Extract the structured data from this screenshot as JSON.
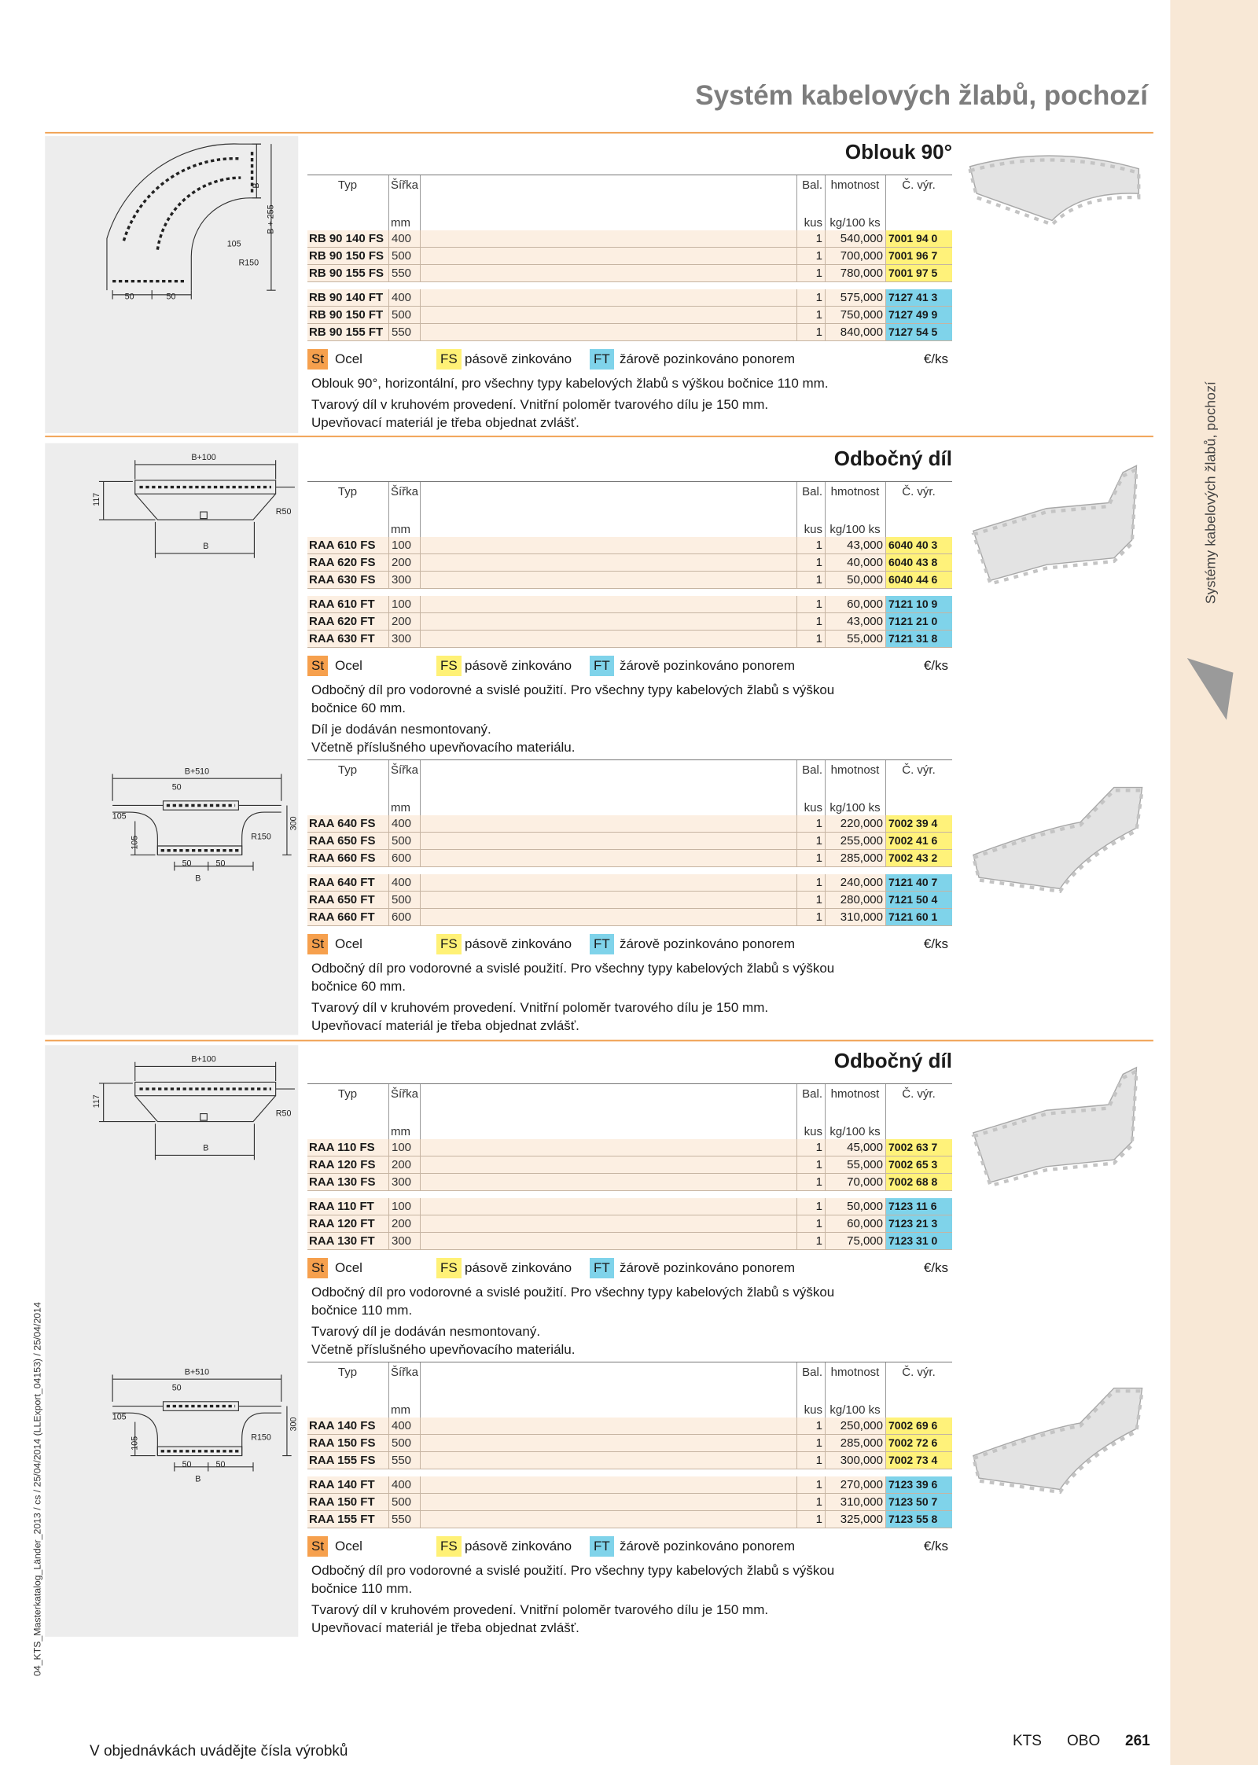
{
  "header": {
    "title": "Systém kabelových žlabů, pochozí"
  },
  "side_label": "Systémy kabelových žlabů, pochozí",
  "print_info": "04_KTS_Masterkatalog_Länder_2013 / cs / 25/04/2014 (LLExport_04153) / 25/04/2014",
  "footer": {
    "note": "V objednávkách uvádějte čísla výrobků",
    "brand1": "KTS",
    "brand2": "OBO",
    "page": "261"
  },
  "table_header": {
    "columns": [
      "Typ",
      "Šířka",
      "Bal.",
      "hmotnost",
      "Č. výr."
    ],
    "units": [
      "mm",
      "kus",
      "kg/100 ks"
    ]
  },
  "legend": {
    "st": "St",
    "st_label": "Ocel",
    "fs": "FS",
    "fs_label": "pásově zinkováno",
    "ft": "FT",
    "ft_label": "žárově pozinkováno ponorem",
    "unit": "€/ks"
  },
  "sections": [
    {
      "title": "Oblouk 90°",
      "drawing_labels": [
        "B",
        "B + 255",
        "105",
        "R150",
        "50",
        "50"
      ],
      "groups": [
        [
          [
            "RB 90 140 FS",
            "400",
            "1",
            "540,000",
            "7001 94 0"
          ],
          [
            "RB 90 150 FS",
            "500",
            "1",
            "700,000",
            "7001 96 7"
          ],
          [
            "RB 90 155 FS",
            "550",
            "1",
            "780,000",
            "7001 97 5"
          ]
        ],
        [
          [
            "RB 90 140 FT",
            "400",
            "1",
            "575,000",
            "7127 41 3"
          ],
          [
            "RB 90 150 FT",
            "500",
            "1",
            "750,000",
            "7127 49 9"
          ],
          [
            "RB 90 155 FT",
            "550",
            "1",
            "840,000",
            "7127 54 5"
          ]
        ]
      ],
      "description": [
        [
          "Oblouk 90°, horizontální, pro všechny typy kabelových žlabů s výškou bočnice 110 mm."
        ],
        [
          "Tvarový díl v kruhovém provedení. Vnitřní poloměr tvarového dílu je 150 mm.",
          "Upevňovací materiál je třeba objednat zvlášť."
        ]
      ]
    },
    {
      "title": "Odbočný díl",
      "drawing_labels": [
        "B+100",
        "117",
        "R50",
        "B"
      ],
      "groups": [
        [
          [
            "RAA 610 FS",
            "100",
            "1",
            "43,000",
            "6040 40 3"
          ],
          [
            "RAA 620 FS",
            "200",
            "1",
            "40,000",
            "6040 43 8"
          ],
          [
            "RAA 630 FS",
            "300",
            "1",
            "50,000",
            "6040 44 6"
          ]
        ],
        [
          [
            "RAA 610 FT",
            "100",
            "1",
            "60,000",
            "7121 10 9"
          ],
          [
            "RAA 620 FT",
            "200",
            "1",
            "43,000",
            "7121 21 0"
          ],
          [
            "RAA 630 FT",
            "300",
            "1",
            "55,000",
            "7121 31 8"
          ]
        ]
      ],
      "description": [
        [
          "Odbočný díl pro vodorovné a svislé použití. Pro všechny typy kabelových žlabů s výškou",
          "bočnice 60 mm."
        ],
        [
          "Díl je dodáván nesmontovaný.",
          "Včetně příslušného upevňovacího materiálu."
        ]
      ]
    },
    {
      "drawing_labels": [
        "B+510",
        "50",
        "105",
        "105",
        "R150",
        "300",
        "50",
        "50",
        "B"
      ],
      "groups": [
        [
          [
            "RAA 640 FS",
            "400",
            "1",
            "220,000",
            "7002 39 4"
          ],
          [
            "RAA 650 FS",
            "500",
            "1",
            "255,000",
            "7002 41 6"
          ],
          [
            "RAA 660 FS",
            "600",
            "1",
            "285,000",
            "7002 43 2"
          ]
        ],
        [
          [
            "RAA 640 FT",
            "400",
            "1",
            "240,000",
            "7121 40 7"
          ],
          [
            "RAA 650 FT",
            "500",
            "1",
            "280,000",
            "7121 50 4"
          ],
          [
            "RAA 660 FT",
            "600",
            "1",
            "310,000",
            "7121 60 1"
          ]
        ]
      ],
      "description": [
        [
          "Odbočný díl pro vodorovné a svislé použití. Pro všechny typy kabelových žlabů s výškou",
          "bočnice 60 mm."
        ],
        [
          "Tvarový díl v kruhovém provedení. Vnitřní poloměr tvarového dílu je 150 mm.",
          "Upevňovací materiál je třeba objednat zvlášť."
        ]
      ]
    },
    {
      "title": "Odbočný díl",
      "drawing_labels": [
        "B+100",
        "117",
        "R50",
        "B"
      ],
      "groups": [
        [
          [
            "RAA 110 FS",
            "100",
            "1",
            "45,000",
            "7002 63 7"
          ],
          [
            "RAA 120 FS",
            "200",
            "1",
            "55,000",
            "7002 65 3"
          ],
          [
            "RAA 130 FS",
            "300",
            "1",
            "70,000",
            "7002 68 8"
          ]
        ],
        [
          [
            "RAA 110 FT",
            "100",
            "1",
            "50,000",
            "7123 11 6"
          ],
          [
            "RAA 120 FT",
            "200",
            "1",
            "60,000",
            "7123 21 3"
          ],
          [
            "RAA 130 FT",
            "300",
            "1",
            "75,000",
            "7123 31 0"
          ]
        ]
      ],
      "description": [
        [
          "Odbočný díl pro vodorovné a svislé použití. Pro všechny typy kabelových žlabů s výškou",
          "bočnice 110 mm."
        ],
        [
          "Tvarový díl je dodáván nesmontovaný.",
          "Včetně příslušného upevňovacího materiálu."
        ]
      ]
    },
    {
      "drawing_labels": [
        "B+510",
        "50",
        "105",
        "105",
        "R150",
        "300",
        "50",
        "50",
        "B"
      ],
      "groups": [
        [
          [
            "RAA 140 FS",
            "400",
            "1",
            "250,000",
            "7002 69 6"
          ],
          [
            "RAA 150 FS",
            "500",
            "1",
            "285,000",
            "7002 72 6"
          ],
          [
            "RAA 155 FS",
            "550",
            "1",
            "300,000",
            "7002 73 4"
          ]
        ],
        [
          [
            "RAA 140 FT",
            "400",
            "1",
            "270,000",
            "7123 39 6"
          ],
          [
            "RAA 150 FT",
            "500",
            "1",
            "310,000",
            "7123 50 7"
          ],
          [
            "RAA 155 FT",
            "550",
            "1",
            "325,000",
            "7123 55 8"
          ]
        ]
      ],
      "description": [
        [
          "Odbočný díl pro vodorovné a svislé použití. Pro všechny typy kabelových žlabů s výškou",
          "bočnice 110 mm."
        ],
        [
          "Tvarový díl v kruhovém provedení. Vnitřní poloměr tvarového dílu je 150 mm.",
          "Upevňovací materiál je třeba objednat zvlášť."
        ]
      ]
    }
  ]
}
